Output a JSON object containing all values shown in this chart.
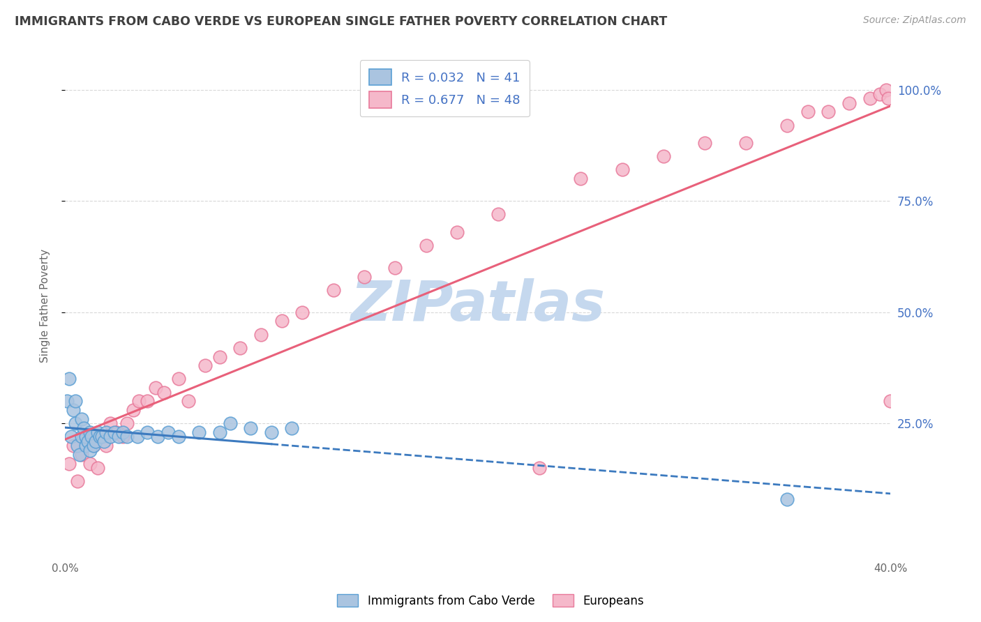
{
  "title": "IMMIGRANTS FROM CABO VERDE VS EUROPEAN SINGLE FATHER POVERTY CORRELATION CHART",
  "source_text": "Source: ZipAtlas.com",
  "ylabel": "Single Father Poverty",
  "x_min": 0.0,
  "x_max": 0.4,
  "y_min": -0.05,
  "y_max": 1.08,
  "x_ticks": [
    0.0,
    0.1,
    0.2,
    0.3,
    0.4
  ],
  "x_tick_labels": [
    "0.0%",
    "",
    "",
    "",
    "40.0%"
  ],
  "y_tick_labels_right": [
    "25.0%",
    "50.0%",
    "75.0%",
    "100.0%"
  ],
  "y_ticks_right": [
    0.25,
    0.5,
    0.75,
    1.0
  ],
  "y_ticks_grid": [
    0.25,
    0.5,
    0.75,
    1.0
  ],
  "cabo_verde_color": "#aac4e0",
  "cabo_verde_edge": "#5a9fd4",
  "european_color": "#f5b8ca",
  "european_edge": "#e8799a",
  "cabo_verde_line_color": "#3c7abf",
  "european_line_color": "#e8607a",
  "cabo_verde_R": 0.032,
  "cabo_verde_N": 41,
  "european_R": 0.677,
  "european_N": 48,
  "legend_label_1": "Immigrants from Cabo Verde",
  "legend_label_2": "Europeans",
  "watermark": "ZIPatlas",
  "watermark_color": "#c5d8ee",
  "background_color": "#ffffff",
  "grid_color": "#d8d8d8",
  "title_color": "#404040",
  "label_color": "#4472c4",
  "cabo_verde_scatter_x": [
    0.001,
    0.002,
    0.003,
    0.004,
    0.005,
    0.005,
    0.006,
    0.007,
    0.008,
    0.008,
    0.009,
    0.01,
    0.01,
    0.011,
    0.012,
    0.012,
    0.013,
    0.014,
    0.015,
    0.016,
    0.017,
    0.018,
    0.019,
    0.02,
    0.022,
    0.024,
    0.026,
    0.028,
    0.03,
    0.035,
    0.04,
    0.045,
    0.05,
    0.055,
    0.065,
    0.075,
    0.08,
    0.09,
    0.1,
    0.11,
    0.35
  ],
  "cabo_verde_scatter_y": [
    0.3,
    0.35,
    0.22,
    0.28,
    0.25,
    0.3,
    0.2,
    0.18,
    0.22,
    0.26,
    0.24,
    0.2,
    0.22,
    0.21,
    0.19,
    0.23,
    0.22,
    0.2,
    0.21,
    0.23,
    0.22,
    0.22,
    0.21,
    0.23,
    0.22,
    0.23,
    0.22,
    0.23,
    0.22,
    0.22,
    0.23,
    0.22,
    0.23,
    0.22,
    0.23,
    0.23,
    0.25,
    0.24,
    0.23,
    0.24,
    0.08
  ],
  "european_scatter_x": [
    0.002,
    0.004,
    0.006,
    0.008,
    0.01,
    0.012,
    0.014,
    0.016,
    0.018,
    0.02,
    0.022,
    0.025,
    0.028,
    0.03,
    0.033,
    0.036,
    0.04,
    0.044,
    0.048,
    0.055,
    0.06,
    0.068,
    0.075,
    0.085,
    0.095,
    0.105,
    0.115,
    0.13,
    0.145,
    0.16,
    0.175,
    0.19,
    0.21,
    0.23,
    0.25,
    0.27,
    0.29,
    0.31,
    0.33,
    0.35,
    0.36,
    0.37,
    0.38,
    0.39,
    0.395,
    0.398,
    0.399,
    0.4
  ],
  "european_scatter_y": [
    0.16,
    0.2,
    0.12,
    0.18,
    0.22,
    0.16,
    0.2,
    0.15,
    0.22,
    0.2,
    0.25,
    0.23,
    0.22,
    0.25,
    0.28,
    0.3,
    0.3,
    0.33,
    0.32,
    0.35,
    0.3,
    0.38,
    0.4,
    0.42,
    0.45,
    0.48,
    0.5,
    0.55,
    0.58,
    0.6,
    0.65,
    0.68,
    0.72,
    0.15,
    0.8,
    0.82,
    0.85,
    0.88,
    0.88,
    0.92,
    0.95,
    0.95,
    0.97,
    0.98,
    0.99,
    1.0,
    0.98,
    0.3
  ]
}
